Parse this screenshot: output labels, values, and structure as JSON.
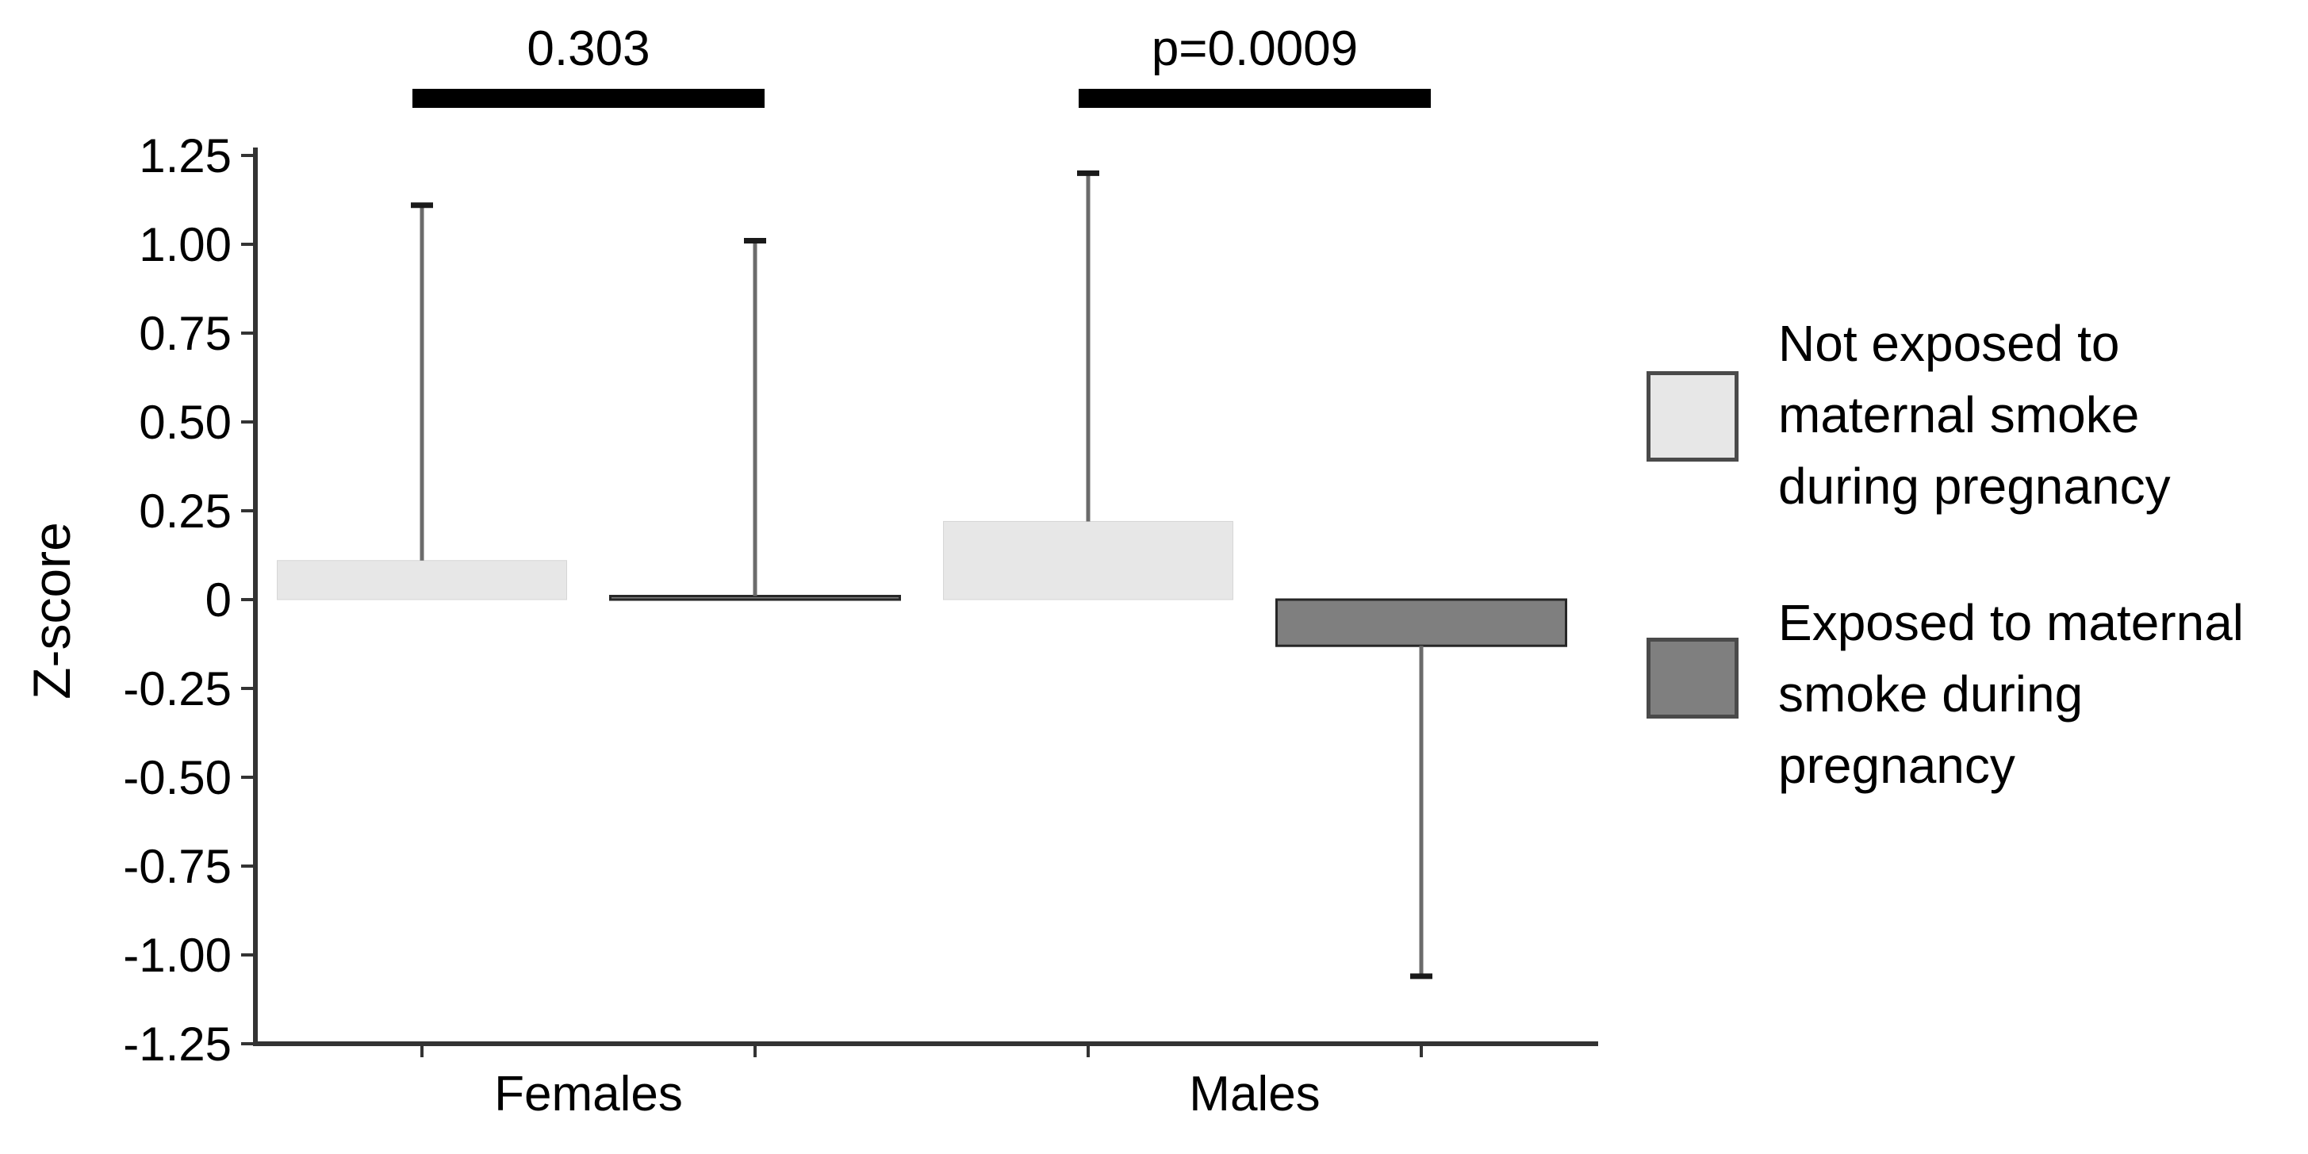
{
  "page": {
    "background": "#ffffff"
  },
  "chart_data": {
    "type": "bar",
    "title": "",
    "xlabel": "",
    "ylabel": "Z-score",
    "categories": [
      "Females",
      "Males"
    ],
    "series": [
      {
        "name": "Not exposed to maternal smoke during pregnancy",
        "color": "#e7e7e7",
        "values": [
          0.11,
          0.22
        ],
        "error_upper": [
          1.11,
          1.2
        ],
        "error_lower": [
          null,
          null
        ]
      },
      {
        "name": "Exposed to maternal smoke during pregnancy",
        "color": "#7f7f7f",
        "values": [
          0.01,
          -0.13
        ],
        "error_upper": [
          1.01,
          null
        ],
        "error_lower": [
          null,
          -1.06
        ]
      }
    ],
    "ylim": [
      -1.25,
      1.25
    ],
    "ytick_step": 0.25,
    "ytick_labels": [
      "1.25",
      "1.00",
      "0.75",
      "0.50",
      "0.25",
      "0",
      "-0.25",
      "-0.50",
      "-0.75",
      "-1.00",
      "-1.25"
    ],
    "grid": false,
    "legend_position": "right",
    "annotations": [
      {
        "category": "Females",
        "label": "0.303"
      },
      {
        "category": "Males",
        "label": "p=0.0009"
      }
    ]
  },
  "legend": {
    "items": [
      {
        "label": "Not exposed to maternal smoke during pregnancy",
        "color": "#e7e7e7"
      },
      {
        "label": "Exposed to maternal smoke during pregnancy",
        "color": "#7f7f7f"
      }
    ]
  },
  "colors": {
    "axis": "#333333",
    "whisker_line": "#6b6b6b",
    "whisker_cap": "#1a1a1a",
    "significance_bar": "#000000",
    "dark_bar_border": "#262626",
    "light_bar_border": "#d6d6d6",
    "swatch_border": "#4a4a4a"
  }
}
